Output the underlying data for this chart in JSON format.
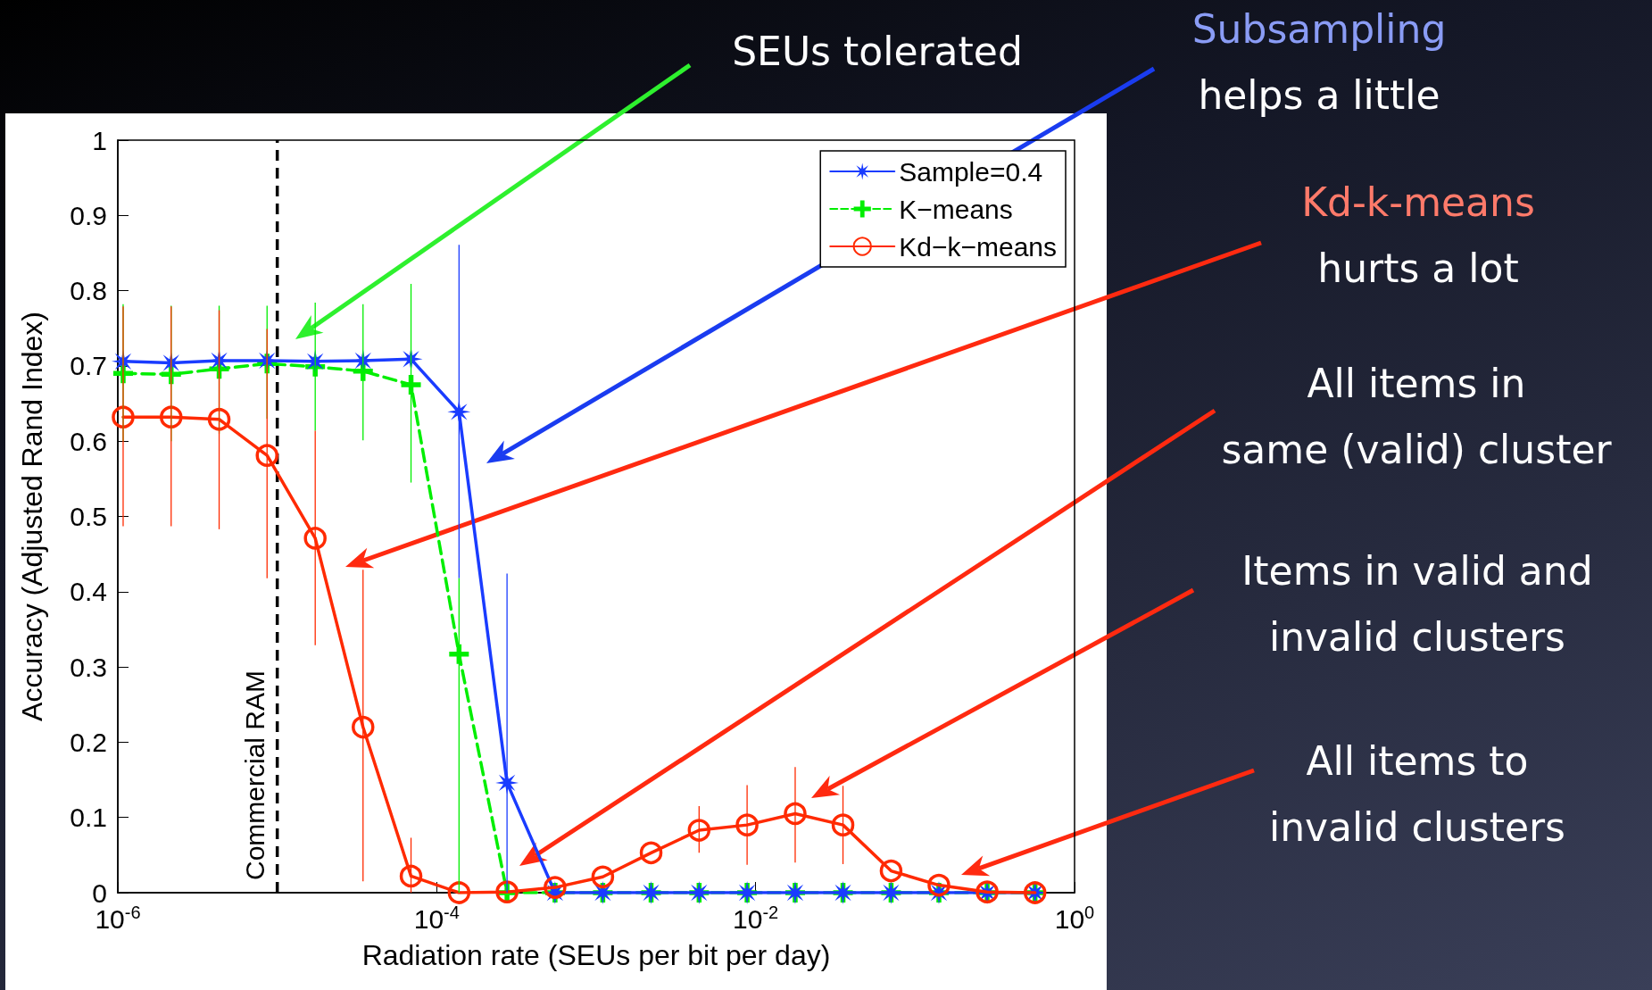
{
  "chart_data": {
    "type": "line",
    "xlabel": "Radiation rate (SEUs per bit per day)",
    "ylabel": "Accuracy (Adjusted Rand Index)",
    "x": [
      1.08e-06,
      2.16e-06,
      4.32e-06,
      8.63e-06,
      1.73e-05,
      3.45e-05,
      6.9e-05,
      0.000138,
      0.000276,
      0.000552,
      0.0011,
      0.00221,
      0.00442,
      0.00884,
      0.0177,
      0.0353,
      0.0707,
      0.141,
      0.283,
      0.565
    ],
    "series": [
      {
        "name": "Sample=0.4",
        "color": "#1a3cff",
        "marker": "star",
        "line_style": "solid",
        "values": [
          0.706,
          0.704,
          0.707,
          0.707,
          0.706,
          0.707,
          0.709,
          0.639,
          0.146,
          0,
          0,
          0,
          0,
          0,
          0,
          0,
          0,
          0,
          0,
          0
        ],
        "errors": [
          null,
          null,
          null,
          null,
          null,
          null,
          null,
          [
            0.418,
            0.861
          ],
          [
            0,
            0.424
          ],
          null,
          null,
          null,
          null,
          null,
          null,
          null,
          null,
          null,
          null,
          null
        ]
      },
      {
        "name": "K−means",
        "color": "#00ee00",
        "marker": "cross",
        "line_style": "dashed",
        "values": [
          0.69,
          0.689,
          0.696,
          0.703,
          0.699,
          0.693,
          0.675,
          0.317,
          0,
          0,
          0,
          0,
          0,
          0,
          0,
          0,
          0,
          0,
          0,
          0
        ],
        "errors": [
          [
            0.6,
            0.782
          ],
          [
            0.6,
            0.78
          ],
          [
            0.61,
            0.78
          ],
          [
            0.63,
            0.78
          ],
          [
            0.614,
            0.784
          ],
          [
            0.601,
            0.782
          ],
          [
            0.545,
            0.809
          ],
          [
            0,
            0.418
          ],
          null,
          null,
          null,
          null,
          null,
          null,
          null,
          null,
          null,
          null,
          null,
          null
        ]
      },
      {
        "name": "Kd−k−means",
        "color": "#ff2a00",
        "marker": "circle",
        "line_style": "solid",
        "values": [
          0.632,
          0.632,
          0.629,
          0.581,
          0.471,
          0.22,
          0.022,
          0,
          0.001,
          0.007,
          0.021,
          0.053,
          0.083,
          0.09,
          0.105,
          0.09,
          0.029,
          0.01,
          0.001,
          0
        ],
        "errors": [
          [
            0.487,
            0.779
          ],
          [
            0.487,
            0.779
          ],
          [
            0.483,
            0.774
          ],
          [
            0.418,
            0.749
          ],
          [
            0.329,
            0.614
          ],
          [
            0.015,
            0.429
          ],
          [
            0,
            0.073
          ],
          null,
          null,
          null,
          null,
          null,
          [
            0.053,
            0.115
          ],
          [
            0.037,
            0.143
          ],
          [
            0.04,
            0.167
          ],
          [
            0.038,
            0.142
          ],
          null,
          null,
          null,
          null
        ]
      }
    ],
    "xlim": [
      1e-06,
      1
    ],
    "xticks": [
      {
        "value": 1e-06,
        "label": "10$^{-6}$"
      },
      {
        "value": 0.0001,
        "label": "10$^{-4}$"
      },
      {
        "value": 0.01,
        "label": "10$^{-2}$"
      },
      {
        "value": 1,
        "label": "10$^{0}$"
      }
    ],
    "ylim": [
      0,
      1
    ],
    "yticks": [
      0,
      0.1,
      0.2,
      0.3,
      0.4,
      0.5,
      0.6,
      0.7,
      0.8,
      0.9,
      1
    ],
    "log": "x",
    "grid": false,
    "legend": "top right",
    "ref_lines": [
      {
        "axis": "x",
        "value": 1e-05,
        "label": "Commercial RAM",
        "color": "#000000",
        "line_style": "dashed"
      }
    ],
    "annotations": [
      "SEUs tolerated",
      "Subsampling\nhelps a little",
      "Kd-k-means\nhurts a lot",
      "All items in\nsame (valid) cluster",
      "Items in valid and\ninvalid clusters",
      "All items to\ninvalid clusters"
    ]
  }
}
